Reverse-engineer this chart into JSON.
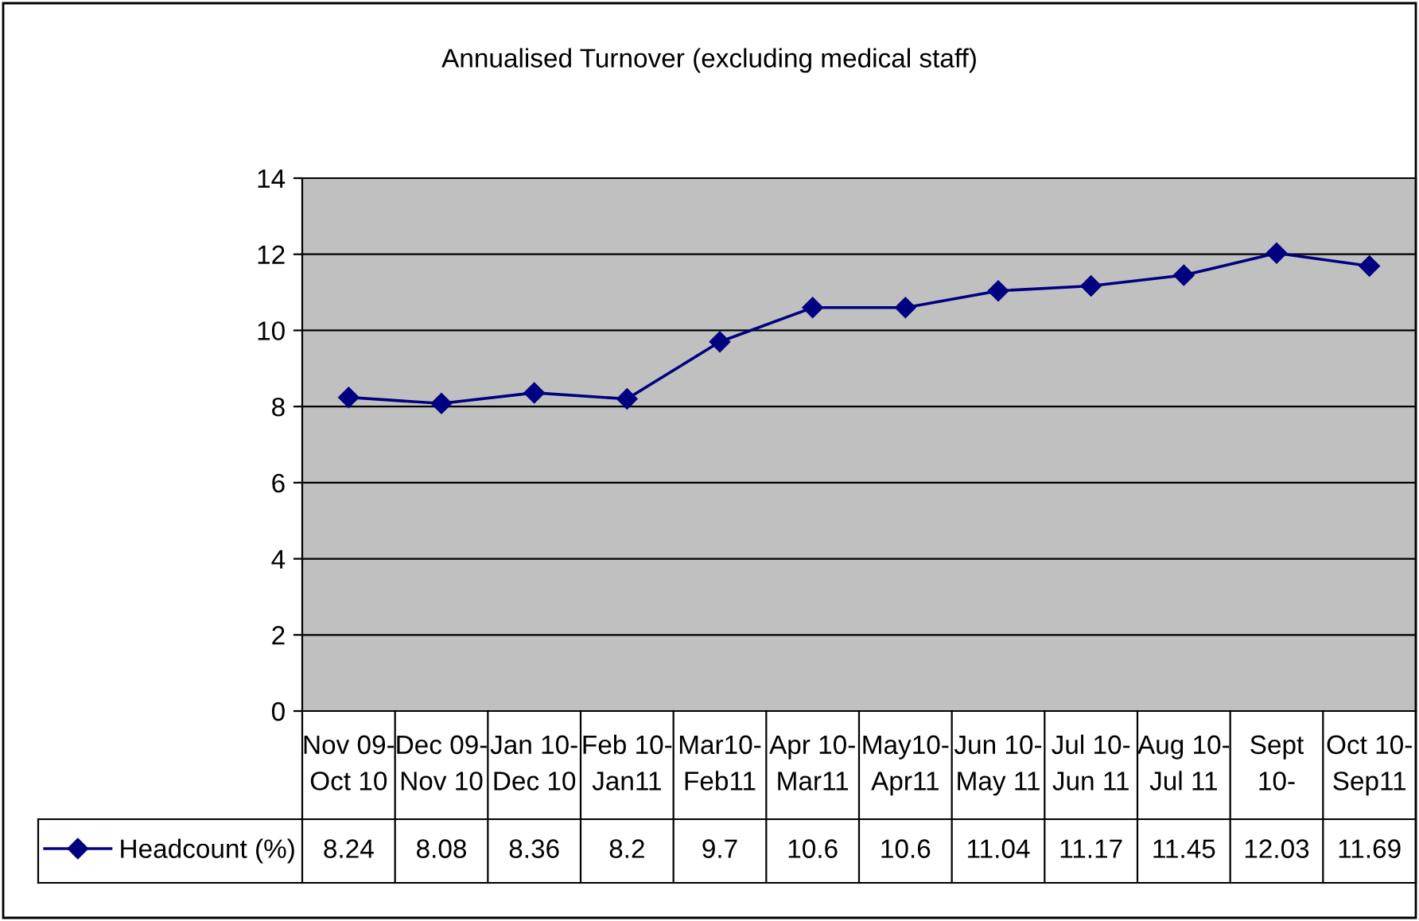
{
  "chart_data": {
    "type": "line",
    "title": "Annualised Turnover (excluding medical staff)",
    "categories": [
      "Nov 09-\nOct 10",
      "Dec 09-\nNov 10",
      "Jan 10-\nDec 10",
      "Feb 10-\nJan11",
      "Mar10-\nFeb11",
      "Apr 10-\nMar11",
      "May10-\nApr11",
      "Jun 10-\nMay 11",
      "Jul 10-\nJun 11",
      "Aug 10-\nJul 11",
      "Sept\n10-",
      "Oct 10-\nSep11"
    ],
    "series": [
      {
        "name": "Headcount (%)",
        "color": "#000080",
        "values": [
          8.24,
          8.08,
          8.36,
          8.2,
          9.7,
          10.6,
          10.6,
          11.04,
          11.17,
          11.45,
          12.03,
          11.69
        ]
      }
    ],
    "ylim": [
      0,
      14
    ],
    "yticks": [
      0,
      2,
      4,
      6,
      8,
      10,
      12,
      14
    ],
    "grid": "y",
    "marker": "diamond",
    "line_style": "solid",
    "legend": "bottom left",
    "data_labels": true
  }
}
